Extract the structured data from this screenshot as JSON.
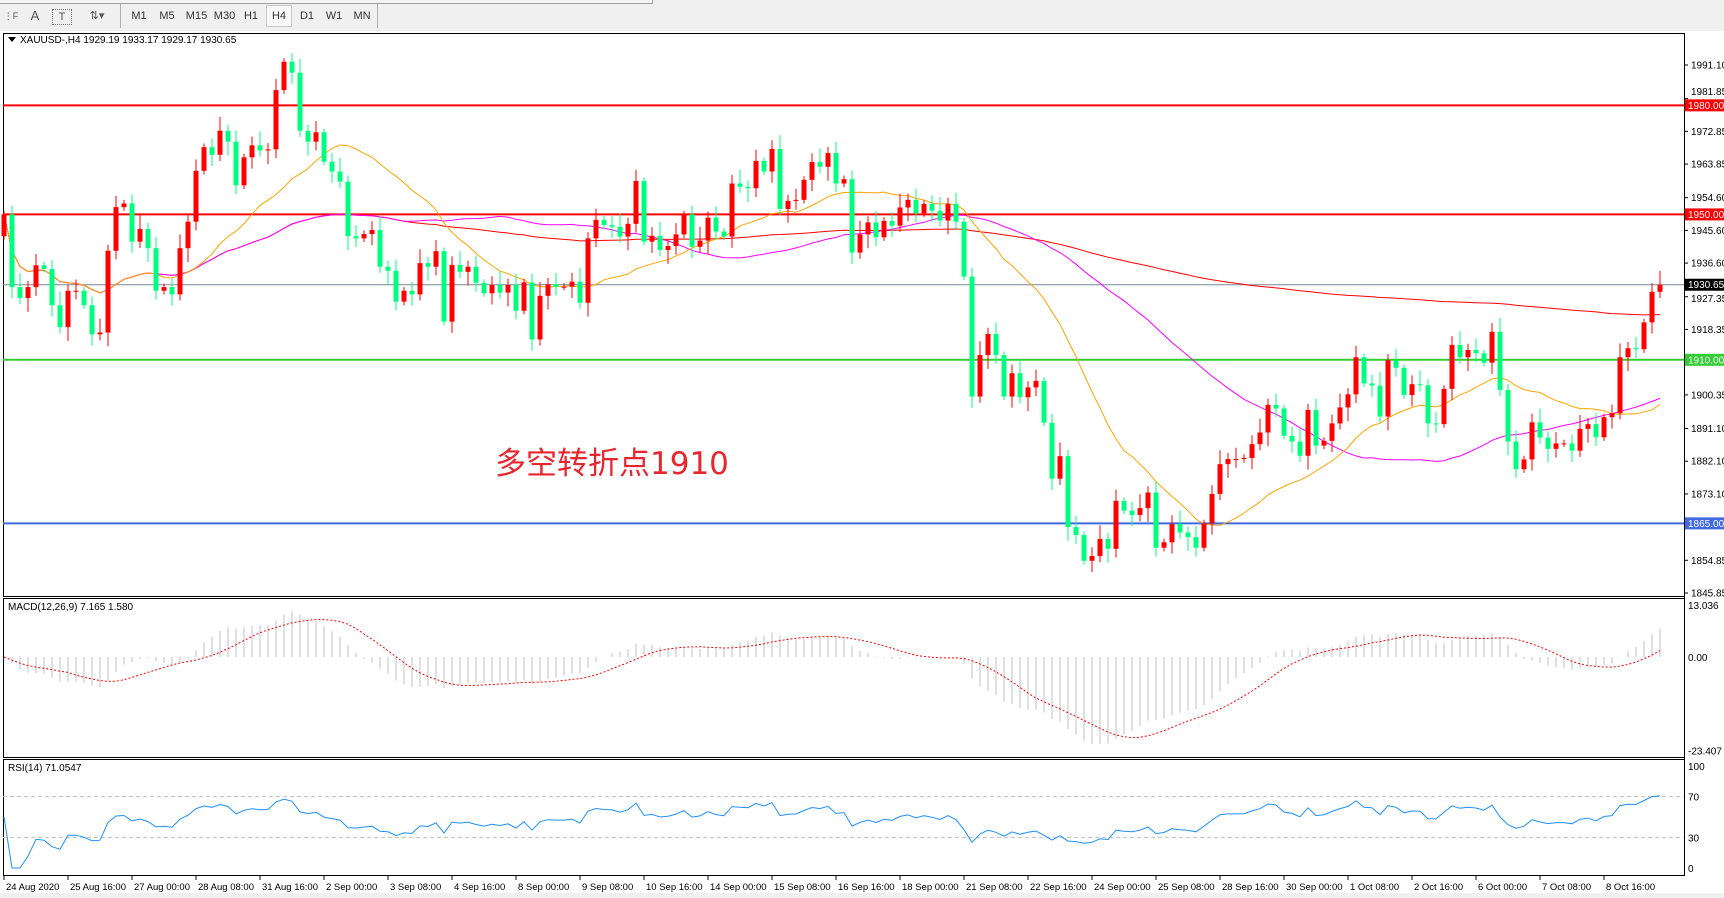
{
  "toolbar": {
    "tools": [
      {
        "name": "grid-f-icon",
        "glyph": "⋮F"
      },
      {
        "name": "text-a-icon",
        "glyph": "A"
      },
      {
        "name": "text-label-icon",
        "glyph": "T"
      },
      {
        "name": "arrows-icon",
        "glyph": "⇅▾"
      }
    ],
    "timeframes": [
      "M1",
      "M5",
      "M15",
      "M30",
      "H1",
      "H4",
      "D1",
      "W1",
      "MN"
    ],
    "active_timeframe": "H4"
  },
  "chart": {
    "header": "XAUUSD-,H4  1929.19 1933.17 1929.17 1930.65",
    "annotation": "多空转折点1910",
    "colors": {
      "bull": "#ff0000",
      "bear": "#00ff7f",
      "ma_fast": "#ffa500",
      "ma_mid": "#ff00ff",
      "ma_slow": "#ff0000",
      "current": "#778899"
    },
    "first_open": 1944,
    "closes": [
      1950,
      1930,
      1927,
      1930,
      1936,
      1935,
      1925,
      1919,
      1929,
      1929,
      1925,
      1917,
      1917.5,
      1940,
      1952,
      1953,
      1942.5,
      1946,
      1940.7,
      1929,
      1930,
      1928,
      1940.7,
      1948,
      1962,
      1968.5,
      1966.4,
      1973,
      1970,
      1958,
      1965.7,
      1969,
      1967.6,
      1967.9,
      1984.2,
      1992,
      1989,
      1973,
      1970,
      1972.6,
      1964.5,
      1961.8,
      1959,
      1944,
      1943.4,
      1944.6,
      1945.7,
      1935.6,
      1934.5,
      1926,
      1929,
      1928,
      1936.6,
      1935.6,
      1939.9,
      1920.5,
      1936.1,
      1934.2,
      1935.6,
      1931.2,
      1928.3,
      1930.6,
      1928.5,
      1930.6,
      1923.5,
      1931.3,
      1915.6,
      1927.6,
      1930.8,
      1930.1,
      1930.1,
      1931.5,
      1925.7,
      1943.4,
      1948.5,
      1947.1,
      1946.6,
      1943.9,
      1947.4,
      1959.2,
      1942.5,
      1944.1,
      1940.2,
      1941.3,
      1944.5,
      1950,
      1941.1,
      1942.8,
      1949.1,
      1945.3,
      1943.9,
      1958.5,
      1957.6,
      1957.2,
      1964.7,
      1961.8,
      1968,
      1951.5,
      1953.7,
      1954,
      1959.5,
      1964.4,
      1963.1,
      1966.9,
      1958.5,
      1959.7,
      1939.5,
      1944.5,
      1947.8,
      1943.7,
      1948.2,
      1946.9,
      1951.9,
      1954,
      1950.3,
      1952.9,
      1951,
      1948.3,
      1952.9,
      1948,
      1932.9,
      1899.9,
      1911.3,
      1917.1,
      1911.3,
      1899.9,
      1906.3,
      1899.7,
      1902.4,
      1904.2,
      1892.7,
      1877.3,
      1883.5,
      1864,
      1861.8,
      1854.7,
      1856,
      1860.7,
      1858,
      1871.2,
      1868.5,
      1867.3,
      1869.2,
      1873.5,
      1858.3,
      1859.8,
      1864.8,
      1862.5,
      1861.2,
      1858.3,
      1865,
      1873.1,
      1881.3,
      1882.7,
      1882.7,
      1883,
      1886.8,
      1890,
      1897.6,
      1896.6,
      1889.1,
      1887.5,
      1883.6,
      1896.2,
      1886.4,
      1887.7,
      1892.5,
      1896.9,
      1900.5,
      1910.7,
      1903.5,
      1902.9,
      1894.4,
      1909.9,
      1907.8,
      1900.3,
      1903.3,
      1903,
      1892.5,
      1892.3,
      1902,
      1914.1,
      1910.7,
      1912.7,
      1911.8,
      1909.2,
      1917.7,
      1901.7,
      1887.5,
      1879.9,
      1882.6,
      1892.8,
      1888.6,
      1885.5,
      1887,
      1887,
      1885,
      1891,
      1892.3,
      1888.7,
      1894.2,
      1895.3,
      1910.7,
      1913.2,
      1912.9,
      1920.3,
      1928.7,
      1930.65
    ],
    "price_ticks": [
      "1991.10",
      "1981.85",
      "1972.85",
      "1963.85",
      "1954.60",
      "1945.60",
      "1936.60",
      "1927.35",
      "1918.35",
      "1900.35",
      "1891.10",
      "1882.10",
      "1873.10",
      "1854.85",
      "1845.85"
    ],
    "current_price": "1930.65",
    "levels": [
      {
        "price": "1980.00",
        "color": "#ff0000"
      },
      {
        "price": "1950.00",
        "color": "#ff0000"
      },
      {
        "price": "1910.00",
        "color": "#32cd32"
      },
      {
        "price": "1865.00",
        "color": "#4169e1"
      }
    ]
  },
  "macd": {
    "label": "MACD(12,26,9) 7.165 1.580",
    "ticks": [
      "13.036",
      "0.00",
      "-23.407"
    ]
  },
  "rsi": {
    "label": "RSI(14) 71.0547",
    "ticks": [
      "100",
      "70",
      "30",
      "0"
    ]
  },
  "time_axis": [
    "24 Aug 2020",
    "25 Aug 16:00",
    "27 Aug 00:00",
    "28 Aug 08:00",
    "31 Aug 16:00",
    "2 Sep 00:00",
    "3 Sep 08:00",
    "4 Sep 16:00",
    "8 Sep 00:00",
    "9 Sep 08:00",
    "10 Sep 16:00",
    "14 Sep 00:00",
    "15 Sep 08:00",
    "16 Sep 16:00",
    "18 Sep 00:00",
    "21 Sep 08:00",
    "22 Sep 16:00",
    "24 Sep 00:00",
    "25 Sep 08:00",
    "28 Sep 16:00",
    "30 Sep 00:00",
    "1 Oct 08:00",
    "2 Oct 16:00",
    "6 Oct 00:00",
    "7 Oct 08:00",
    "8 Oct 16:00"
  ]
}
